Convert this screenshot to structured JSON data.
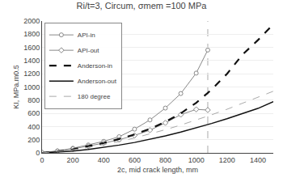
{
  "chart_data": {
    "type": "line",
    "title": "Ri/t=3, Circum, σmem =100 MPa",
    "x_label": "2c, mid crack length, mm",
    "y_label": "KI, MPa.m0.5",
    "xlim": [
      0,
      1500
    ],
    "ylim": [
      0,
      2000
    ],
    "xticks": [
      0,
      200,
      400,
      600,
      800,
      1000,
      1200,
      1400
    ],
    "yticks": [
      0,
      200,
      400,
      600,
      800,
      1000,
      1200,
      1400,
      1600,
      1800,
      2000
    ],
    "grid": "y",
    "legend": "upper left",
    "vline_x": 1075,
    "series": [
      {
        "name": "API-in",
        "color": "#888888",
        "line_style": "solid",
        "marker": "circle",
        "x": [
          0,
          100,
          200,
          300,
          400,
          500,
          600,
          700,
          800,
          900,
          1000,
          1075
        ],
        "values": [
          5,
          30,
          70,
          120,
          175,
          245,
          360,
          500,
          680,
          900,
          1210,
          1560
        ]
      },
      {
        "name": "API-out",
        "color": "#888888",
        "line_style": "solid",
        "marker": "diamond",
        "x": [
          0,
          100,
          200,
          300,
          400,
          500,
          600,
          700,
          800,
          900,
          1000,
          1075
        ],
        "values": [
          5,
          25,
          60,
          100,
          148,
          200,
          265,
          345,
          455,
          580,
          660,
          650
        ]
      },
      {
        "name": "Anderson-in",
        "color": "#111111",
        "line_style": "dashed",
        "x": [
          0,
          100,
          200,
          300,
          400,
          500,
          600,
          700,
          800,
          900,
          1000,
          1100,
          1200,
          1300,
          1400,
          1500
        ],
        "values": [
          0,
          22,
          55,
          98,
          150,
          210,
          280,
          365,
          470,
          600,
          760,
          960,
          1200,
          1490,
          1710,
          1950
        ]
      },
      {
        "name": "Anderson-out",
        "color": "#111111",
        "line_style": "solid",
        "x": [
          0,
          100,
          200,
          300,
          400,
          500,
          600,
          700,
          800,
          900,
          1000,
          1100,
          1200,
          1300,
          1400,
          1500
        ],
        "values": [
          0,
          10,
          28,
          52,
          82,
          118,
          158,
          205,
          258,
          315,
          378,
          446,
          518,
          594,
          674,
          778
        ]
      },
      {
        "name": "180 degree",
        "color": "#aaaaaa",
        "line_style": "dashed",
        "x": [
          0,
          100,
          200,
          300,
          400,
          500,
          600,
          700,
          800,
          900,
          1000,
          1100,
          1200,
          1300,
          1400,
          1500
        ],
        "values": [
          0,
          18,
          45,
          82,
          124,
          172,
          226,
          286,
          352,
          422,
          498,
          578,
          662,
          750,
          840,
          935
        ]
      }
    ]
  }
}
